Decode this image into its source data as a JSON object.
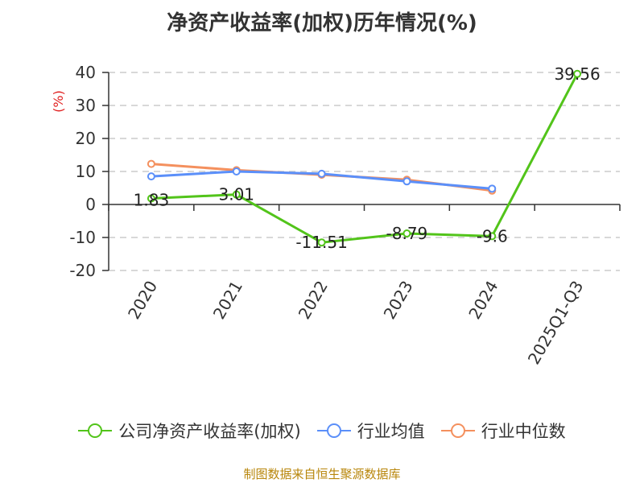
{
  "title": "净资产收益率(加权)历年情况(%)",
  "source": "制图数据来自恒生聚源数据库",
  "chart_data": {
    "type": "line",
    "title": "净资产收益率(加权)历年情况(%)",
    "ylabel": "(%)",
    "ylim": [
      -20,
      40
    ],
    "yticks": [
      40,
      30,
      20,
      10,
      0,
      -10,
      -20
    ],
    "categories": [
      "2020",
      "2021",
      "2022",
      "2023",
      "2024",
      "2025Q1-Q3"
    ],
    "grid": true,
    "legend_position": "bottom",
    "series": [
      {
        "name": "公司净资产收益率(加权)",
        "color": "#52c41a",
        "values": [
          1.83,
          3.01,
          -11.51,
          -8.79,
          -9.6,
          39.56
        ],
        "labels": [
          "1.83",
          "3.01",
          "-11.51",
          "-8.79",
          "-9.6",
          "39.56"
        ]
      },
      {
        "name": "行业均值",
        "color": "#5b8ff9",
        "values": [
          8.5,
          10.0,
          9.3,
          7.0,
          4.8,
          null
        ]
      },
      {
        "name": "行业中位数",
        "color": "#f4905e",
        "values": [
          12.3,
          10.4,
          9.0,
          7.5,
          4.2,
          null
        ]
      }
    ]
  }
}
